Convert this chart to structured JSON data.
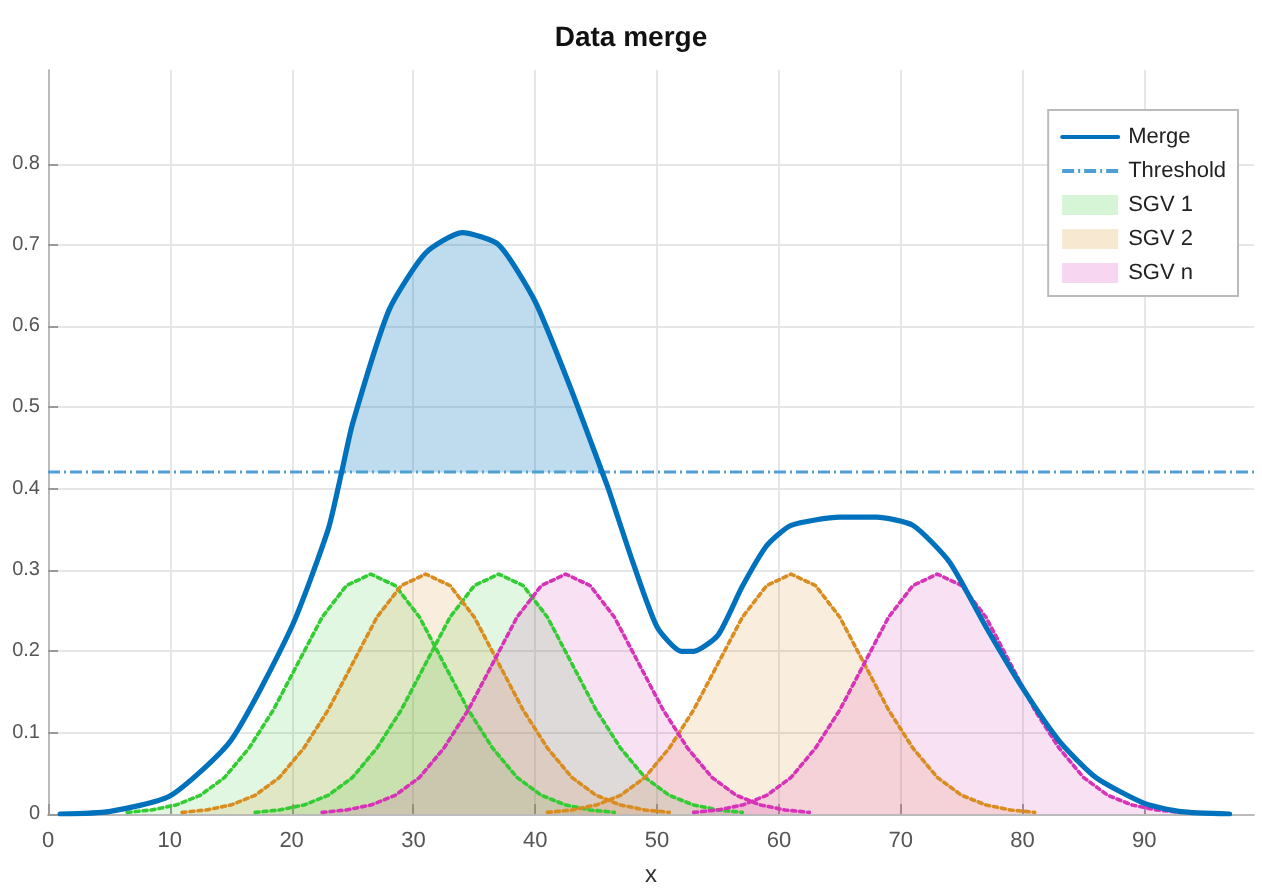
{
  "chart_data": {
    "type": "line",
    "title": "Data merge",
    "xlabel": "x",
    "xlim": [
      0,
      99
    ],
    "ylim": [
      0,
      0.915
    ],
    "xticks": [
      0,
      10,
      20,
      30,
      40,
      50,
      60,
      70,
      80,
      90
    ],
    "yticks": [
      0,
      0.1,
      0.2,
      0.3,
      0.4,
      0.5,
      0.6,
      0.7,
      0.8
    ],
    "grid": true,
    "legend": "top right",
    "ref_lines": [
      {
        "axis": "y",
        "value": 0.42,
        "label": "Threshold",
        "color": "#4d9fd6",
        "line_style": "dashed"
      }
    ],
    "series": [
      {
        "name": "SGV 1",
        "type": "area",
        "color": "#33cc33",
        "line_style": "dotted",
        "x": [
          6.5,
          8.5,
          10.5,
          12.5,
          14.5,
          16.5,
          18.5,
          20.5,
          22.5,
          24.5,
          26.5,
          28.5,
          30.5,
          32.5,
          34.5,
          36.5,
          38.5,
          40.5,
          42.5,
          44.5,
          46.5
        ],
        "values": [
          0.002,
          0.005,
          0.011,
          0.023,
          0.045,
          0.081,
          0.128,
          0.185,
          0.242,
          0.281,
          0.295,
          0.281,
          0.242,
          0.185,
          0.128,
          0.081,
          0.045,
          0.023,
          0.011,
          0.005,
          0.002
        ]
      },
      {
        "type": "area",
        "color": "#33cc33",
        "line_style": "dotted",
        "x": [
          17,
          19,
          21,
          23,
          25,
          27,
          29,
          31,
          33,
          35,
          37,
          39,
          41,
          43,
          45,
          47,
          49,
          51,
          53,
          55,
          57
        ],
        "values": [
          0.002,
          0.005,
          0.011,
          0.023,
          0.045,
          0.081,
          0.128,
          0.185,
          0.242,
          0.281,
          0.295,
          0.281,
          0.242,
          0.185,
          0.128,
          0.081,
          0.045,
          0.023,
          0.011,
          0.005,
          0.002
        ]
      },
      {
        "name": "SGV 2",
        "type": "area",
        "color": "#d98c1f",
        "line_style": "dotted",
        "x": [
          11,
          13,
          15,
          17,
          19,
          21,
          23,
          25,
          27,
          29,
          31,
          33,
          35,
          37,
          39,
          41,
          43,
          45,
          47,
          49,
          51
        ],
        "values": [
          0.002,
          0.005,
          0.011,
          0.023,
          0.045,
          0.081,
          0.128,
          0.185,
          0.242,
          0.281,
          0.295,
          0.281,
          0.242,
          0.185,
          0.128,
          0.081,
          0.045,
          0.023,
          0.011,
          0.005,
          0.002
        ]
      },
      {
        "type": "area",
        "color": "#d98c1f",
        "line_style": "dotted",
        "x": [
          41,
          43,
          45,
          47,
          49,
          51,
          53,
          55,
          57,
          59,
          61,
          63,
          65,
          67,
          69,
          71,
          73,
          75,
          77,
          79,
          81
        ],
        "values": [
          0.002,
          0.005,
          0.011,
          0.023,
          0.045,
          0.081,
          0.128,
          0.185,
          0.242,
          0.281,
          0.295,
          0.281,
          0.242,
          0.185,
          0.128,
          0.081,
          0.045,
          0.023,
          0.011,
          0.005,
          0.002
        ]
      },
      {
        "name": "SGV n",
        "type": "area",
        "color": "#d633b8",
        "line_style": "dotted",
        "x": [
          22.5,
          24.5,
          26.5,
          28.5,
          30.5,
          32.5,
          34.5,
          36.5,
          38.5,
          40.5,
          42.5,
          44.5,
          46.5,
          48.5,
          50.5,
          52.5,
          54.5,
          56.5,
          58.5,
          60.5,
          62.5
        ],
        "values": [
          0.002,
          0.005,
          0.011,
          0.023,
          0.045,
          0.081,
          0.128,
          0.185,
          0.242,
          0.281,
          0.295,
          0.281,
          0.242,
          0.185,
          0.128,
          0.081,
          0.045,
          0.023,
          0.011,
          0.005,
          0.002
        ]
      },
      {
        "type": "area",
        "color": "#d633b8",
        "line_style": "dotted",
        "x": [
          53,
          55,
          57,
          59,
          61,
          63,
          65,
          67,
          69,
          71,
          73,
          75,
          77,
          79,
          81,
          83,
          85,
          87,
          89,
          91,
          93
        ],
        "values": [
          0.002,
          0.005,
          0.011,
          0.023,
          0.045,
          0.081,
          0.128,
          0.185,
          0.242,
          0.281,
          0.295,
          0.281,
          0.242,
          0.185,
          0.128,
          0.081,
          0.045,
          0.023,
          0.011,
          0.005,
          0.002
        ]
      },
      {
        "name": "Merge",
        "type": "line",
        "color": "#0072bd",
        "line_style": "solid",
        "x": [
          1,
          5,
          10,
          15,
          20,
          23,
          24.1,
          25,
          28,
          31,
          34,
          37,
          40,
          43,
          45.5,
          46,
          48,
          50,
          52,
          53,
          55,
          57,
          59,
          61,
          65,
          68,
          71,
          74,
          77,
          80,
          83,
          86,
          90,
          93,
          97
        ],
        "values": [
          0,
          0.003,
          0.022,
          0.09,
          0.23,
          0.35,
          0.42,
          0.48,
          0.62,
          0.69,
          0.715,
          0.7,
          0.63,
          0.52,
          0.42,
          0.4,
          0.31,
          0.23,
          0.2,
          0.2,
          0.22,
          0.28,
          0.33,
          0.355,
          0.365,
          0.365,
          0.355,
          0.31,
          0.23,
          0.155,
          0.09,
          0.045,
          0.013,
          0.003,
          0
        ],
        "lower": [
          null,
          null,
          null,
          null,
          null,
          null,
          0.42,
          0.42,
          0.42,
          0.42,
          0.42,
          0.42,
          0.42,
          0.42,
          0.42,
          null,
          null,
          null,
          null,
          null,
          null,
          null,
          null,
          null,
          null,
          null,
          null,
          null,
          null,
          null,
          null,
          null,
          null,
          null,
          null
        ],
        "upper": [
          null,
          null,
          null,
          null,
          null,
          null,
          0.42,
          0.48,
          0.62,
          0.69,
          0.715,
          0.7,
          0.63,
          0.52,
          0.42,
          null,
          null,
          null,
          null,
          null,
          null,
          null,
          null,
          null,
          null,
          null,
          null,
          null,
          null,
          null,
          null,
          null,
          null,
          null,
          null
        ]
      }
    ]
  }
}
